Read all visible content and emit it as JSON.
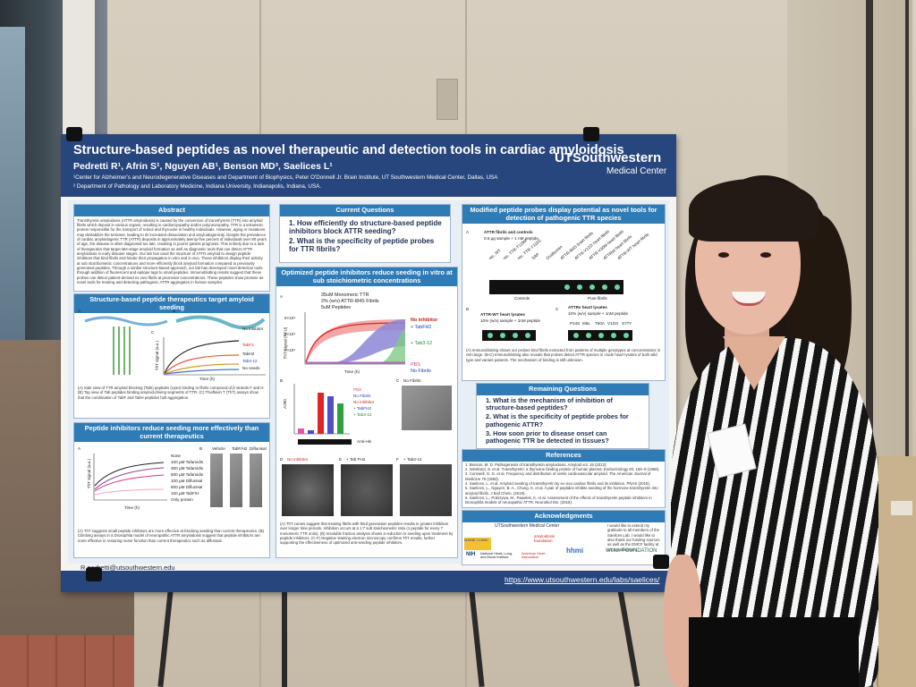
{
  "poster": {
    "title": "Structure-based peptides as novel therapeutic and detection tools in cardiac amyloidosis",
    "authors": "Pedretti R¹, Afrin S¹, Nguyen AB¹, Benson MD³, Saelices L¹",
    "affiliation_1": "¹Center for Alzheimer's and Neurodegenerative Diseases and Department of Biophysics, Peter O'Donnell Jr. Brain Institute, UT Southwestern Medical Center, Dallas, USA",
    "affiliation_2": "² Department of Pathology and Laboratory Medicine, Indiana University, Indianapolis, Indiana, USA.",
    "logo_name": "UTSouthwestern",
    "logo_sub": "Medical Center",
    "email": "R pedretti@utsouthwestern.edu",
    "url": "https://www.utsouthwestern.edu/labs/saelices/",
    "colors": {
      "header": "#28467e",
      "section_header": "#2f7bb5",
      "body": "#e7eef5"
    },
    "sections": {
      "abstract": {
        "title": "Abstract",
        "text": "Transthyretin amyloidosis (ATTR amyloidosis) is caused by the conversion of transthyretin (TTR) into amyloid fibrils which deposit in various organs, resulting in cardiomyopathy and/or polyneuropathy. TTR is a tetrameric protein responsible for the transport of retinol and thyroxine in healthy individuals. However, aging or mutations may destabilize the tetramer, leading to its increased dissociation and amyloidogenicity. Despite the prevalence of cardiac amyloidogenic TTR (ATTR) deposits in approximately twenty-five percent of individuals over 80 years of age, the disease is often diagnosed too late, resulting in poorer patient prognosis. This is likely due to a lack of therapeutics that target late-stage amyloid formation as well as diagnostic tools that can detect ATTR amyloidosis in early disease stages. Our lab has used the structure of ATTR amyloid to design peptide inhibitors that bind fibrils and hinder their propagation in vitro and in vivo. These inhibitors display their activity at sub stoichiometric concentrations and more efficiently block amyloid formation compared to previously generated peptides. Through a similar structure-based approach, our lab has developed novel detection tools through addition of fluorescent and epitope tags to small peptides. Immunoblotting results suggest that these probes can detect patient-derived ex vivo fibrils at picomolar concentrations. These peptides show promise as novel tools for treating and detecting pathogenic ATTR aggregates in human samples."
      },
      "current_questions": {
        "title": "Current Questions",
        "q1": "1. How efficiently do structure-based peptide inhibitors block ATTR seeding?",
        "q2": "2. What is the specificity of peptide probes for TTR fibrils?"
      },
      "structure_based": {
        "title": "Structure-based peptide therapeutics target amyloid seeding",
        "panel_a": "A",
        "panel_b": "B",
        "panel_c": "C",
        "legend": [
          "No inhibitor",
          "TabF2",
          "TabH2",
          "Tab3-12",
          "No seeds"
        ],
        "ylabel": "ThT signal (a.u.)",
        "xlabel": "Time (h)",
        "caption": "(A) Side view of TTR amyloid blocking (TabI) peptides (cyan) binding to fibrils composed of β strands F and H. (B) Top view of Tab peptides binding amyloid-driving segments of TTR. (C) Thioflavin T (ThT) assays show that the combination of TabF and TabH peptides halt aggregation."
      },
      "inhibitors_reduce": {
        "title": "Peptide inhibitors reduce seeding more effectively than current therapeutics",
        "panel_a": "A",
        "panel_b": "B",
        "legend": [
          "None",
          "100 µM Tafamidis",
          "300 µM Tafamidis",
          "500 µM Tafamidis",
          "100 µM Diflunisal",
          "500 µM Diflunisal",
          "100 µM TabF/H",
          "Only protein"
        ],
        "cols": [
          "Vehicle",
          "TabF/H2",
          "Diflunisal"
        ],
        "ylabel": "ThT signal (a.u.)",
        "xlabel": "Time (h)",
        "caption": "(A) ThT suggests small peptide inhibitors are more effective at blocking seeding than current therapeutics. (B) Climbing assays in a Drosophila model of neuropathic ATTR amyloidosis suggest that peptide inhibitors are more effective in restoring motor function than current therapeutics such as diflunisal."
      },
      "optimized": {
        "title": "Optimized peptide inhibitors reduce seeding in vitro at sub stoichiometric concentrations",
        "panel_a": "A",
        "conditions": [
          "35uM Monomeric TTR",
          "2% (w/v) ATTR-I84S Fibrils",
          "5uM Peptides"
        ],
        "legend": [
          "No inhibitor",
          "+ TabFH2",
          "+ Tab3-12",
          "PBS",
          "No Fibrils"
        ],
        "ylabel": "ThT Signal (RFU)",
        "xlabel": "Time (h)",
        "yticks": [
          "6×10⁴",
          "4×10⁴",
          "2×10⁴"
        ],
        "panel_b": "B",
        "panel_c": "C",
        "bar_ylabel": "A280",
        "bar_legend": [
          "PBS",
          "No Fibrils",
          "No inhibitor",
          "+ TabFH2",
          "+ Tab3-12"
        ],
        "blot_label": "Anti-His",
        "em_label_c": "No Fibrils",
        "panel_d": "D",
        "panel_e": "E",
        "panel_f": "F",
        "em_label_d": "No inhibitor",
        "em_label_e": "+ Tab FH2",
        "em_label_f": "+ Tab3-12",
        "caption": "(A) ThT curves suggest that treating fibrils with third generation peptides results in greater inhibition over longer time periods. Inhibition occurs at a 1:7 sub stoichiometric ratio (1 peptide for every 7 monomeric TTR units). (B) Insoluble fraction analysis shows a reduction in seeding upon treatment by peptide inhibitors. (C-F) Negative staining electron microscopy confirms ThT results, further supporting the effectiveness of optimized anti-seeding peptide inhibitors."
      },
      "modified_probes": {
        "title": "Modified peptide probes display potential as novel tools for detection of pathogenic TTR species",
        "panel_a": "A",
        "blot_title": "ATTR fibrils and controls",
        "blot_sub": "0.5 µg sample + 1 nM peptide",
        "lanes": [
          "rec. WT",
          "rec. TTR-T119M",
          "rec. TTR-Y116S",
          "SAP",
          "Ovalbumin",
          "ATTR-I84S brain fibrils",
          "ATTR-V122I heart fibrils",
          "ATTR-V30M heart fibrils",
          "ATTRwt heart fibrils",
          "ATTR-WT heart fibrils"
        ],
        "controls_label": "Controls",
        "pure_label": "Pure fibrils",
        "panel_b": "B",
        "panel_c": "C",
        "b_title": "ATTR-WT heart lysates",
        "b_sub": "10% (w/v) sample + 1nM peptide",
        "c_title": "ATTRv heart lysates",
        "c_sub": "10% (w/v) sample + 1nM peptide",
        "c_lanes": [
          "P24S",
          "I68L",
          "T60A",
          "V122I",
          "S77Y"
        ],
        "caption": "(A) Immunoblotting shows our probes bind fibrils extracted from patients of multiple genotypes at concentrations in nM range. (B-C) Immunoblotting also reveals that probes detect ATTR species in crude heart lysates of both wild type and variant patients. The mechanism of binding is still unknown."
      },
      "remaining": {
        "title": "Remaining Questions",
        "q1": "1. What is the mechanism of inhibition of structure-based peptides?",
        "q2": "2. What is the specificity of peptide probes for pathogenic ATTR?",
        "q3": "3. How soon prior to disease onset can pathogenic TTR be detected in tissues?"
      },
      "references": {
        "title": "References",
        "items": [
          "1. Benson, M. D. Pathogenesis of transthyretin amyloidosis. Amyloid vol. 19 (2012).",
          "2. Westlund, S. et al. Transthyretin: a thyroxine binding protein of human plasma. Endocrinology 83, 156–9 (1968).",
          "3. Cornwell, G. G. et al. Frequency and distribution of senile cardiovascular amyloid. The American Journal of Medicine 75 (1983).",
          "4. Saelices, L. et al. Amyloid seeding of transthyretin by ex vivo cardiac fibrils and its inhibition. PNAS (2018).",
          "5. Saelices, L., Nguyen, B. A., Chung, K. et al. A pair of peptides inhibits seeding of the hormone transthyretin into amyloid fibrils. J Biol Chem. (2019).",
          "6. Saelices, L., Pokrzywa, M., Pawelek, K. et al. Assessment of the effects of transthyretin peptide inhibitors in Drosophila models of neuropathic ATTR. Neurobiol Dis. (2018)."
        ]
      },
      "acknowledgments": {
        "title": "Acknowledgments",
        "text": "I would like to extend my gratitude to all members of the Saelices Lab. I would like to also thank our funding sources as well as the EMCF facility at UT Southwestern.",
        "sponsors": [
          "MAINE CLINIC",
          "UTSouthwestern Medical Center",
          "amyloidosis foundation",
          "NIH",
          "National Heart, Lung, and Blood Institute",
          "American Heart Association",
          "hhmi",
          "Welch FOUNDATION"
        ]
      }
    }
  }
}
